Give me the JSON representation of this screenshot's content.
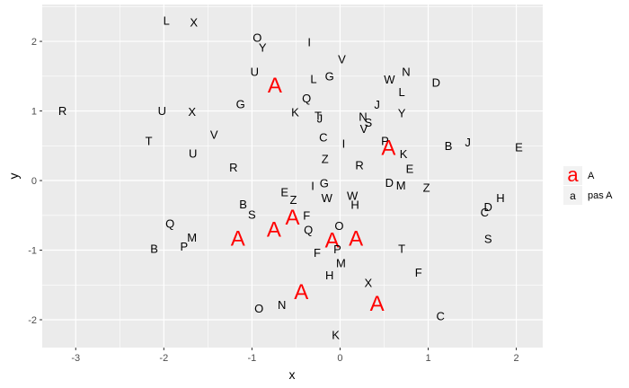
{
  "chart_data": {
    "type": "scatter",
    "title": "",
    "xlabel": "x",
    "ylabel": "y",
    "xlim": [
      -3.38,
      2.3
    ],
    "ylim": [
      -2.4,
      2.53
    ],
    "xticks": [
      -3,
      -2,
      -1,
      0,
      1,
      2
    ],
    "yticks": [
      -2,
      -1,
      0,
      1,
      2
    ],
    "grid": true,
    "panel_background": "#ebebeb",
    "grid_color": "#ffffff",
    "legend": {
      "placement": "right",
      "entries": [
        {
          "key": "a",
          "label": "A",
          "color": "#ff0000"
        },
        {
          "key": "a",
          "label": "pas A",
          "color": "#000000"
        }
      ]
    },
    "series": [
      {
        "label": "A",
        "color": "#ff0000",
        "points": [
          {
            "x": -0.74,
            "y": 1.37,
            "text": "A"
          },
          {
            "x": 0.55,
            "y": 0.47,
            "text": "A"
          },
          {
            "x": -0.54,
            "y": -0.53,
            "text": "A"
          },
          {
            "x": -0.75,
            "y": -0.7,
            "text": "A"
          },
          {
            "x": -1.16,
            "y": -0.83,
            "text": "A"
          },
          {
            "x": -0.09,
            "y": -0.86,
            "text": "A"
          },
          {
            "x": 0.18,
            "y": -0.83,
            "text": "A"
          },
          {
            "x": -0.44,
            "y": -1.6,
            "text": "A"
          },
          {
            "x": 0.42,
            "y": -1.77,
            "text": "A"
          }
        ]
      },
      {
        "label": "pas A",
        "color": "#000000",
        "points": [
          {
            "x": -1.97,
            "y": 2.3,
            "text": "L"
          },
          {
            "x": -1.66,
            "y": 2.27,
            "text": "X"
          },
          {
            "x": -0.94,
            "y": 2.05,
            "text": "O"
          },
          {
            "x": -0.88,
            "y": 1.91,
            "text": "Y"
          },
          {
            "x": -0.35,
            "y": 1.99,
            "text": "I"
          },
          {
            "x": 0.02,
            "y": 1.74,
            "text": "V"
          },
          {
            "x": -0.97,
            "y": 1.56,
            "text": "U"
          },
          {
            "x": -0.3,
            "y": 1.46,
            "text": "L"
          },
          {
            "x": -0.12,
            "y": 1.5,
            "text": "G"
          },
          {
            "x": 0.56,
            "y": 1.45,
            "text": "W"
          },
          {
            "x": 0.75,
            "y": 1.56,
            "text": "N"
          },
          {
            "x": 1.09,
            "y": 1.41,
            "text": "D"
          },
          {
            "x": 0.7,
            "y": 1.27,
            "text": "L"
          },
          {
            "x": -0.38,
            "y": 1.18,
            "text": "Q"
          },
          {
            "x": -1.13,
            "y": 1.1,
            "text": "G"
          },
          {
            "x": -0.51,
            "y": 0.98,
            "text": "K"
          },
          {
            "x": -0.25,
            "y": 0.93,
            "text": "T"
          },
          {
            "x": -0.23,
            "y": 0.89,
            "text": "J"
          },
          {
            "x": 0.42,
            "y": 1.09,
            "text": "J"
          },
          {
            "x": 0.26,
            "y": 0.92,
            "text": "N"
          },
          {
            "x": 0.32,
            "y": 0.83,
            "text": "S"
          },
          {
            "x": 0.27,
            "y": 0.74,
            "text": "V"
          },
          {
            "x": 0.7,
            "y": 0.97,
            "text": "Y"
          },
          {
            "x": -3.15,
            "y": 1.0,
            "text": "R"
          },
          {
            "x": -2.02,
            "y": 1.0,
            "text": "U"
          },
          {
            "x": -1.68,
            "y": 0.99,
            "text": "X"
          },
          {
            "x": -2.17,
            "y": 0.57,
            "text": "T"
          },
          {
            "x": -1.43,
            "y": 0.66,
            "text": "V"
          },
          {
            "x": -0.19,
            "y": 0.62,
            "text": "C"
          },
          {
            "x": 0.04,
            "y": 0.53,
            "text": "I"
          },
          {
            "x": 0.51,
            "y": 0.57,
            "text": "P"
          },
          {
            "x": 0.72,
            "y": 0.38,
            "text": "K"
          },
          {
            "x": 1.23,
            "y": 0.5,
            "text": "B"
          },
          {
            "x": 1.45,
            "y": 0.55,
            "text": "J"
          },
          {
            "x": 2.03,
            "y": 0.48,
            "text": "E"
          },
          {
            "x": -1.67,
            "y": 0.39,
            "text": "U"
          },
          {
            "x": -0.17,
            "y": 0.31,
            "text": "Z"
          },
          {
            "x": 0.22,
            "y": 0.22,
            "text": "R"
          },
          {
            "x": 0.79,
            "y": 0.17,
            "text": "E"
          },
          {
            "x": -1.21,
            "y": 0.19,
            "text": "R"
          },
          {
            "x": -0.31,
            "y": -0.08,
            "text": "I"
          },
          {
            "x": -0.18,
            "y": -0.04,
            "text": "G"
          },
          {
            "x": 0.56,
            "y": -0.03,
            "text": "D"
          },
          {
            "x": 0.69,
            "y": -0.07,
            "text": "M"
          },
          {
            "x": 0.98,
            "y": -0.1,
            "text": "Z"
          },
          {
            "x": -0.63,
            "y": -0.17,
            "text": "E"
          },
          {
            "x": -0.53,
            "y": -0.28,
            "text": "Z"
          },
          {
            "x": -0.15,
            "y": -0.25,
            "text": "W"
          },
          {
            "x": 0.14,
            "y": -0.22,
            "text": "W"
          },
          {
            "x": 0.17,
            "y": -0.35,
            "text": "H"
          },
          {
            "x": 1.82,
            "y": -0.25,
            "text": "H"
          },
          {
            "x": 1.68,
            "y": -0.38,
            "text": "D"
          },
          {
            "x": 1.64,
            "y": -0.46,
            "text": "C"
          },
          {
            "x": -1.1,
            "y": -0.34,
            "text": "B"
          },
          {
            "x": -1.0,
            "y": -0.49,
            "text": "S"
          },
          {
            "x": -0.38,
            "y": -0.5,
            "text": "F"
          },
          {
            "x": -1.93,
            "y": -0.62,
            "text": "Q"
          },
          {
            "x": -0.36,
            "y": -0.71,
            "text": "Q"
          },
          {
            "x": -0.01,
            "y": -0.65,
            "text": "O"
          },
          {
            "x": -1.68,
            "y": -0.82,
            "text": "M"
          },
          {
            "x": -1.77,
            "y": -0.95,
            "text": "P"
          },
          {
            "x": -2.11,
            "y": -0.98,
            "text": "B"
          },
          {
            "x": -0.26,
            "y": -1.04,
            "text": "F"
          },
          {
            "x": -0.03,
            "y": -0.99,
            "text": "P"
          },
          {
            "x": 0.7,
            "y": -0.98,
            "text": "T"
          },
          {
            "x": 0.01,
            "y": -1.19,
            "text": "M"
          },
          {
            "x": -0.12,
            "y": -1.36,
            "text": "H"
          },
          {
            "x": 0.89,
            "y": -1.32,
            "text": "F"
          },
          {
            "x": 0.32,
            "y": -1.47,
            "text": "X"
          },
          {
            "x": -0.92,
            "y": -1.84,
            "text": "O"
          },
          {
            "x": -0.66,
            "y": -1.79,
            "text": "N"
          },
          {
            "x": 1.14,
            "y": -1.95,
            "text": "C"
          },
          {
            "x": 1.68,
            "y": -0.84,
            "text": "S"
          },
          {
            "x": -0.05,
            "y": -2.22,
            "text": "K"
          }
        ]
      }
    ]
  }
}
